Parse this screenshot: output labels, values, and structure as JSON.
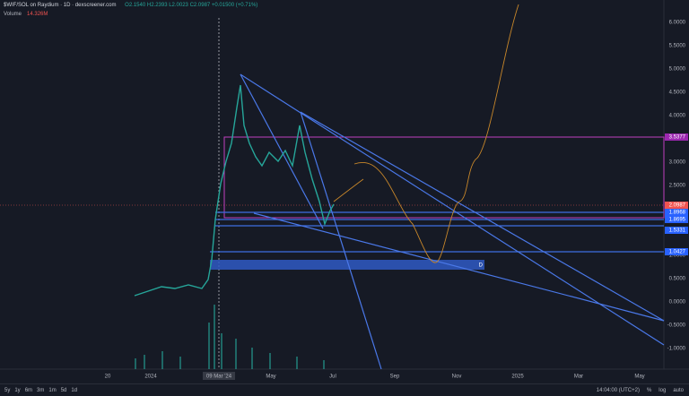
{
  "header": {
    "title": "$WIF/SOL on Raydium · 1D · dexscreener.com",
    "ohlc": "O2.1540 H2.2393 L2.0023 C2.0987 +0.01500 (+0.71%)",
    "volume_label": "Volume",
    "volume_value": "14.326M"
  },
  "price_axis": [
    "6.0000",
    "5.5000",
    "5.0000",
    "4.5000",
    "4.0000",
    "3.5000",
    "3.0000",
    "2.5000",
    "2.0000",
    "1.5000",
    "1.0000",
    "0.5000",
    "0.0000",
    "-0.5000",
    "-1.0000"
  ],
  "price_tags": [
    "3.5377",
    "2.0987",
    "1.8968",
    "1.8695",
    "1.5331",
    "1.0427"
  ],
  "time_axis": [
    "20",
    "2024",
    "09 Mar '24",
    "May",
    "Jul",
    "Sep",
    "Nov",
    "2025",
    "Mar",
    "May"
  ],
  "toolbar": {
    "ranges": [
      "5y",
      "1y",
      "6m",
      "3m",
      "1m",
      "5d",
      "1d"
    ],
    "clock": "14:04:00 (UTC+2)",
    "options": [
      "%",
      "log",
      "auto"
    ]
  },
  "box_marker": "D"
}
